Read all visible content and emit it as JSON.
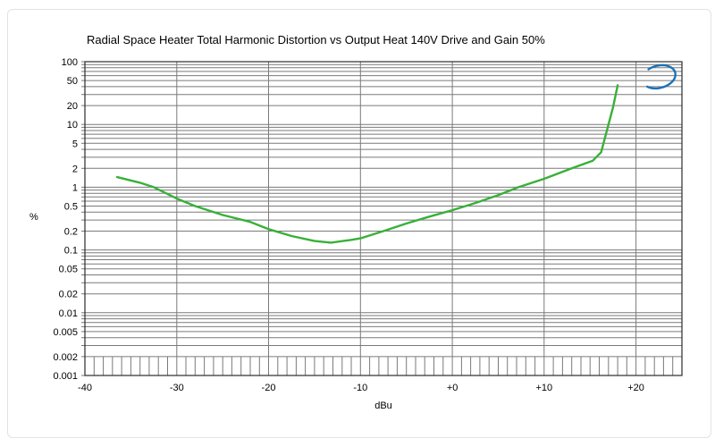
{
  "chart_data": {
    "type": "line",
    "title": "Radial Space Heater Total Harmonic Distortion vs Output Heat 140V Drive and Gain 50%",
    "xlabel": "dBu",
    "ylabel": "%",
    "x_scale": "linear",
    "y_scale": "log",
    "xlim": [
      -40,
      25
    ],
    "ylim": [
      0.001,
      100
    ],
    "grid": true,
    "x_major_tick_values": [
      -40,
      -30,
      -20,
      -10,
      0,
      10,
      20
    ],
    "x_major_tick_labels": [
      "-40",
      "-30",
      "-20",
      "-10",
      "+0",
      "+10",
      "+20"
    ],
    "x_minor_tick_step": 1,
    "y_tick_labels": [
      "100",
      "50",
      "20",
      "10",
      "5",
      "2",
      "1",
      "0.5",
      "0.2",
      "0.1",
      "0.05",
      "0.02",
      "0.01",
      "0.005",
      "0.002",
      "0.001"
    ],
    "series": [
      {
        "name": "thd-vs-output-level",
        "color": "#38b038",
        "points": [
          [
            -36.5,
            1.45
          ],
          [
            -34,
            1.18
          ],
          [
            -32.5,
            1.0
          ],
          [
            -30,
            0.66
          ],
          [
            -28,
            0.5
          ],
          [
            -25,
            0.36
          ],
          [
            -22,
            0.28
          ],
          [
            -20,
            0.215
          ],
          [
            -17.5,
            0.167
          ],
          [
            -15,
            0.139
          ],
          [
            -13.2,
            0.131
          ],
          [
            -11,
            0.145
          ],
          [
            -10,
            0.153
          ],
          [
            -7.5,
            0.2
          ],
          [
            -5,
            0.264
          ],
          [
            -2.5,
            0.34
          ],
          [
            0,
            0.43
          ],
          [
            2.5,
            0.56
          ],
          [
            5,
            0.75
          ],
          [
            7.2,
            1.0
          ],
          [
            10,
            1.36
          ],
          [
            13,
            2.0
          ],
          [
            15.3,
            2.65
          ],
          [
            16.2,
            3.6
          ],
          [
            16.9,
            8.8
          ],
          [
            17.5,
            18.7
          ],
          [
            18.0,
            42
          ]
        ]
      }
    ],
    "colors": {
      "gridline": "#7a7a7a",
      "plot_border": "#2b2b2b",
      "label_text": "#000000"
    }
  },
  "logo": {
    "text": "Ap",
    "color": "#1a72b8"
  }
}
